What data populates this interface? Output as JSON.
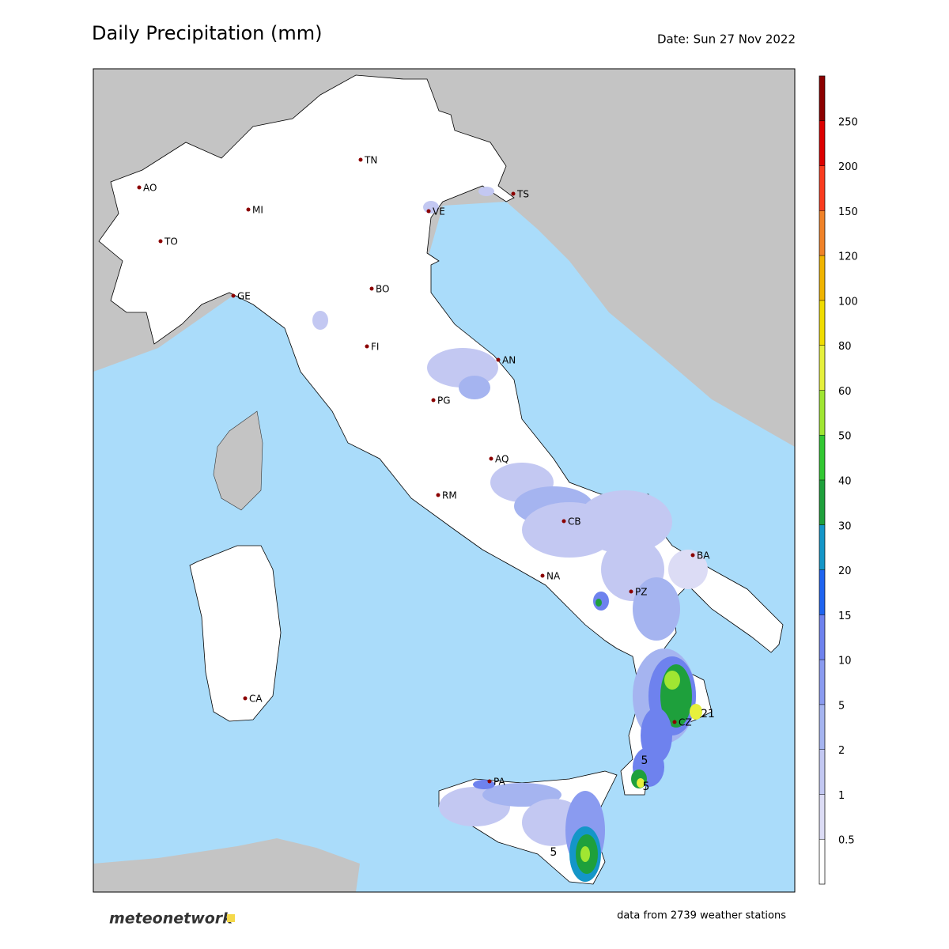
{
  "title": "Daily Precipitation (mm)",
  "date": "Date: Sun 27 Nov 2022",
  "cities": [
    "AO",
    "TO",
    "MI",
    "TN",
    "VE",
    "TS",
    "GE",
    "BO",
    "FI",
    "AN",
    "PG",
    "AQ",
    "RM",
    "CB",
    "NA",
    "BA",
    "PZ",
    "CZ",
    "PA",
    "CA"
  ],
  "contour_labels": [
    "5",
    "21",
    "5",
    "5"
  ],
  "colorbar": {
    "ticks": [
      0.5,
      1,
      2,
      5,
      10,
      15,
      20,
      30,
      40,
      50,
      60,
      80,
      100,
      120,
      150,
      200,
      250
    ],
    "colors": [
      "#ffffff",
      "#dcdcf5",
      "#c3c8f2",
      "#a5b4f0",
      "#8a9bf0",
      "#6e82ee",
      "#1e64f0",
      "#1496c8",
      "#1ea03c",
      "#32c832",
      "#a0e632",
      "#e6f03c",
      "#f0dc00",
      "#f0b400",
      "#f08228",
      "#fa3c1e",
      "#dc0000",
      "#8c0000"
    ]
  },
  "logo": "meteonetwork",
  "footer": "data from 2739 weather stations"
}
